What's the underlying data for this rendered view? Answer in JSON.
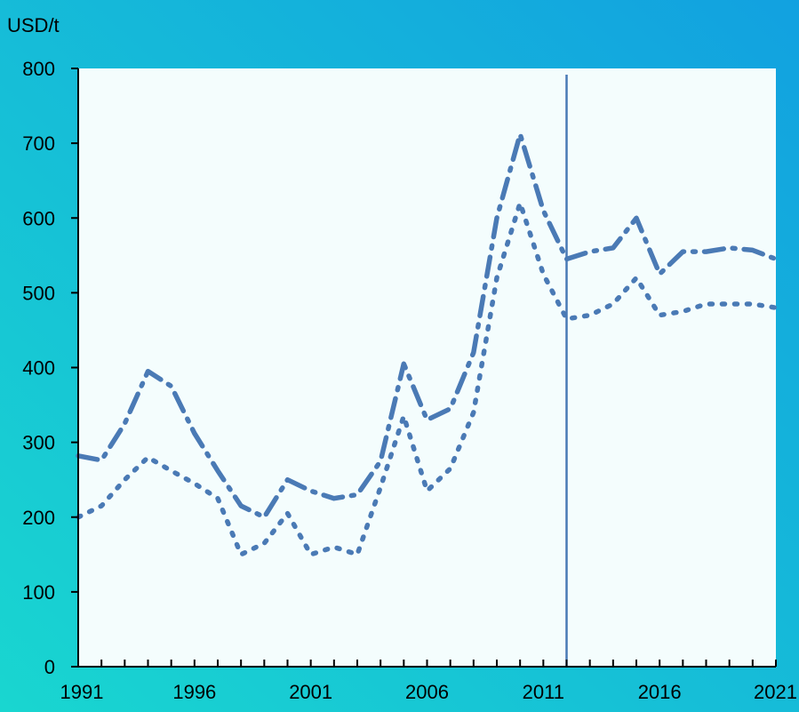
{
  "chart_data": {
    "type": "line",
    "ylabel": "USD/t",
    "ylim": [
      0,
      800
    ],
    "yticks": [
      0,
      100,
      200,
      300,
      400,
      500,
      600,
      700,
      800
    ],
    "xlim": [
      1991,
      2021
    ],
    "xtick_labels": [
      "1991",
      "1996",
      "2001",
      "2006",
      "2011",
      "2016",
      "2021"
    ],
    "grid": false,
    "reference_line_x": 2012,
    "x": [
      1991,
      1992,
      1993,
      1994,
      1995,
      1996,
      1997,
      1998,
      1999,
      2000,
      2001,
      2002,
      2003,
      2004,
      2005,
      2006,
      2007,
      2008,
      2009,
      2010,
      2011,
      2012,
      2013,
      2014,
      2015,
      2016,
      2017,
      2018,
      2019,
      2020,
      2021
    ],
    "series": [
      {
        "style": "dash-dot",
        "color": "#4a7ab5",
        "values": [
          282,
          276,
          325,
          395,
          375,
          312,
          262,
          215,
          200,
          250,
          235,
          225,
          230,
          275,
          405,
          330,
          345,
          420,
          600,
          712,
          610,
          545,
          555,
          560,
          600,
          525,
          555,
          555,
          560,
          557,
          545
        ]
      },
      {
        "style": "dotted",
        "color": "#4a7ab5",
        "values": [
          200,
          215,
          250,
          280,
          262,
          245,
          225,
          150,
          165,
          205,
          150,
          160,
          150,
          240,
          335,
          235,
          265,
          340,
          520,
          620,
          525,
          465,
          470,
          485,
          520,
          470,
          475,
          485,
          485,
          485,
          480
        ]
      }
    ],
    "colors": {
      "background_gradient_start": "#19d6d0",
      "background_gradient_end": "#12a1e0",
      "plot_background": "#f4fdfd",
      "axis": "#000000",
      "series": "#4a7ab5"
    }
  }
}
